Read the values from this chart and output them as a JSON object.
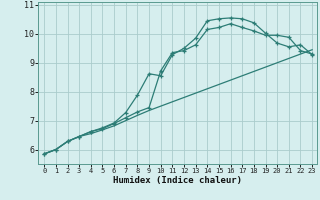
{
  "title": "",
  "xlabel": "Humidex (Indice chaleur)",
  "background_color": "#d6eeee",
  "grid_color": "#aacccc",
  "line_color": "#2d7d76",
  "xlim": [
    -0.5,
    23.4
  ],
  "ylim": [
    5.5,
    11.1
  ],
  "xticks": [
    0,
    1,
    2,
    3,
    4,
    5,
    6,
    7,
    8,
    9,
    10,
    11,
    12,
    13,
    14,
    15,
    16,
    17,
    18,
    19,
    20,
    21,
    22,
    23
  ],
  "yticks": [
    6,
    7,
    8,
    9,
    10,
    11
  ],
  "line1_x": [
    0,
    1,
    2,
    3,
    4,
    5,
    6,
    7,
    8,
    9,
    10,
    11,
    12,
    13,
    14,
    15,
    16,
    17,
    18,
    19,
    20,
    21,
    22,
    23
  ],
  "line1_y": [
    5.85,
    6.0,
    6.28,
    6.45,
    6.62,
    6.72,
    6.9,
    7.1,
    7.3,
    7.45,
    8.72,
    9.35,
    9.42,
    9.62,
    10.15,
    10.22,
    10.35,
    10.22,
    10.1,
    9.95,
    9.95,
    9.88,
    9.42,
    9.3
  ],
  "line2_x": [
    0,
    1,
    2,
    3,
    4,
    5,
    6,
    7,
    8,
    9,
    10,
    11,
    12,
    13,
    14,
    15,
    16,
    17,
    18,
    19,
    20,
    21,
    22,
    23
  ],
  "line2_y": [
    5.85,
    6.0,
    6.28,
    6.45,
    6.62,
    6.75,
    6.92,
    7.28,
    7.88,
    8.62,
    8.55,
    9.28,
    9.5,
    9.85,
    10.45,
    10.52,
    10.55,
    10.52,
    10.38,
    10.02,
    9.68,
    9.55,
    9.62,
    9.28
  ],
  "line3_x": [
    0,
    1,
    2,
    3,
    4,
    5,
    6,
    7,
    8,
    9,
    10,
    11,
    12,
    13,
    14,
    15,
    16,
    17,
    18,
    19,
    20,
    21,
    22,
    23
  ],
  "line3_y": [
    5.85,
    6.0,
    6.28,
    6.45,
    6.55,
    6.68,
    6.82,
    7.0,
    7.18,
    7.35,
    7.5,
    7.65,
    7.8,
    7.95,
    8.1,
    8.25,
    8.4,
    8.55,
    8.7,
    8.85,
    9.0,
    9.15,
    9.3,
    9.45
  ]
}
